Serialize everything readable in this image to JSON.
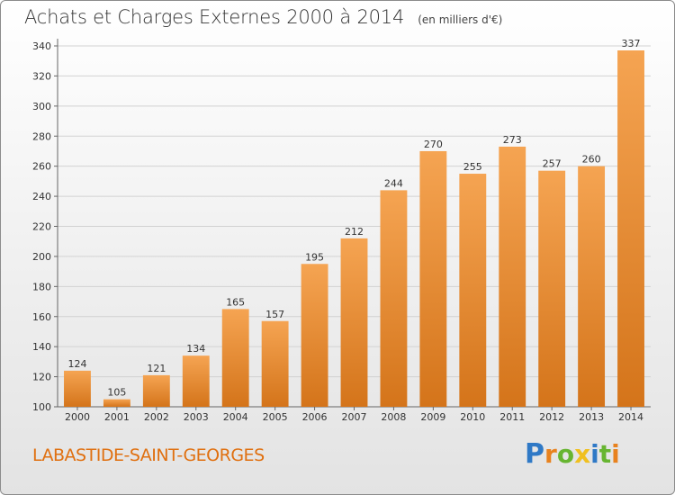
{
  "header": {
    "title": "Achats et Charges Externes 2000 à 2014",
    "subtitle": "(en milliers d'€)"
  },
  "footer": {
    "place_name": "LABASTIDE-SAINT-GEORGES",
    "logo_text": "Proxiti"
  },
  "colors": {
    "bar_top": "#f5a452",
    "bar_bottom": "#d4741a",
    "place_text": "#e07010",
    "logo_letters": [
      "#2f79c6",
      "#e8821e",
      "#67b531",
      "#f0c020",
      "#2f79c6",
      "#67b531",
      "#e8821e"
    ]
  },
  "chart_data": {
    "type": "bar",
    "title": "Achats et Charges Externes 2000 à 2014",
    "subtitle": "(en milliers d'€)",
    "xlabel": "",
    "ylabel": "",
    "categories": [
      "2000",
      "2001",
      "2002",
      "2003",
      "2004",
      "2005",
      "2006",
      "2007",
      "2008",
      "2009",
      "2010",
      "2011",
      "2012",
      "2013",
      "2014"
    ],
    "values": [
      124,
      105,
      121,
      134,
      165,
      157,
      195,
      212,
      244,
      270,
      255,
      273,
      257,
      260,
      337
    ],
    "ylim": [
      100,
      340
    ],
    "yticks": [
      100,
      120,
      140,
      160,
      180,
      200,
      220,
      240,
      260,
      280,
      300,
      320,
      340
    ],
    "grid": true,
    "legend": "none"
  }
}
